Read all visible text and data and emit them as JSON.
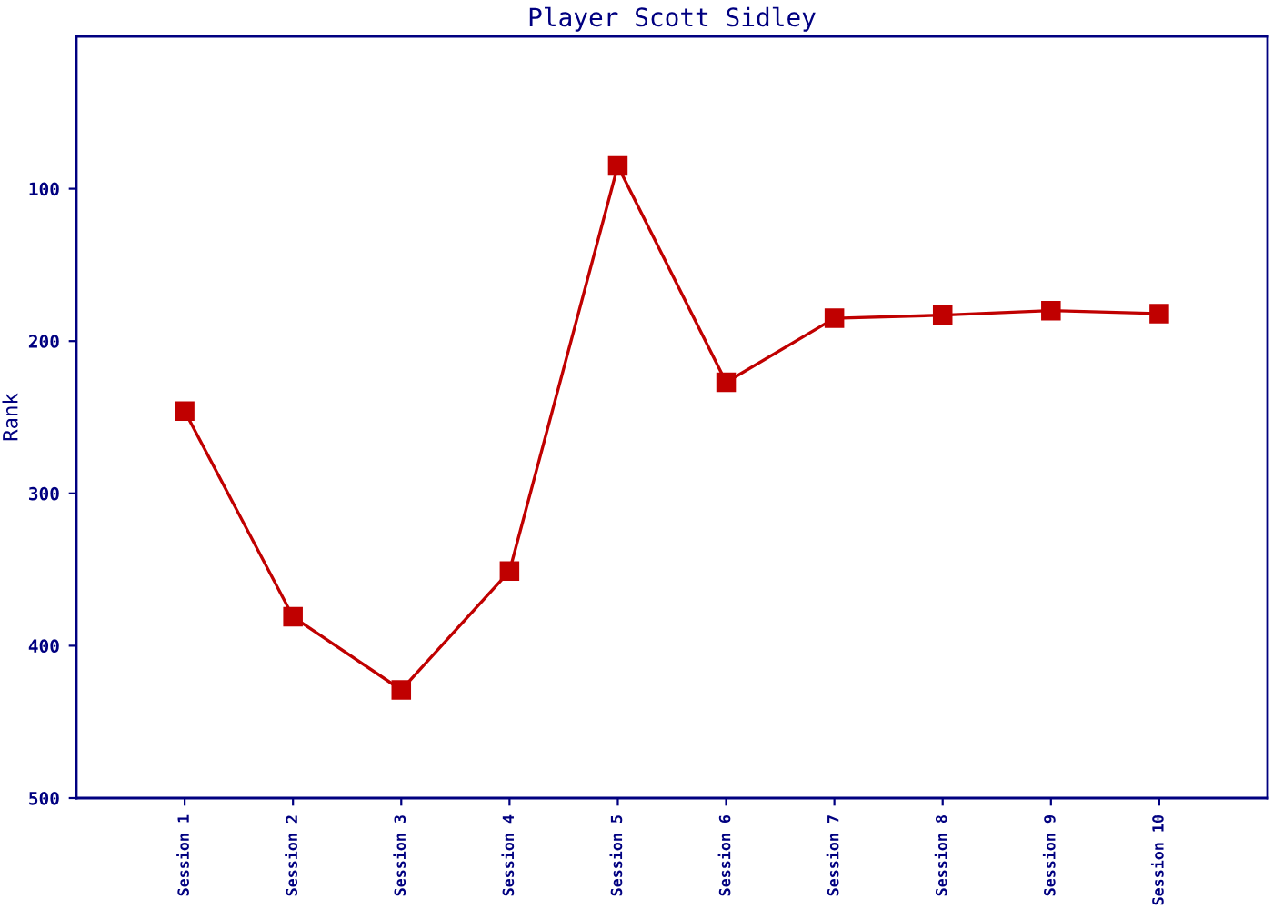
{
  "chart_data": {
    "type": "line",
    "title": "Player Scott Sidley",
    "ylabel": "Rank",
    "categories": [
      "Session 1",
      "Session 2",
      "Session 3",
      "Session 4",
      "Session 5",
      "Session 6",
      "Session 7",
      "Session 8",
      "Session 9",
      "Session 10"
    ],
    "series": [
      {
        "color": "#c00000",
        "values": [
          246,
          381,
          429,
          351,
          85,
          227,
          185,
          183,
          180,
          182
        ]
      }
    ],
    "ylim": [
      500,
      0
    ],
    "yticks": [
      100,
      200,
      300,
      400,
      500
    ],
    "marker": "square",
    "line_style": "solid",
    "grid": false,
    "legend": false
  }
}
